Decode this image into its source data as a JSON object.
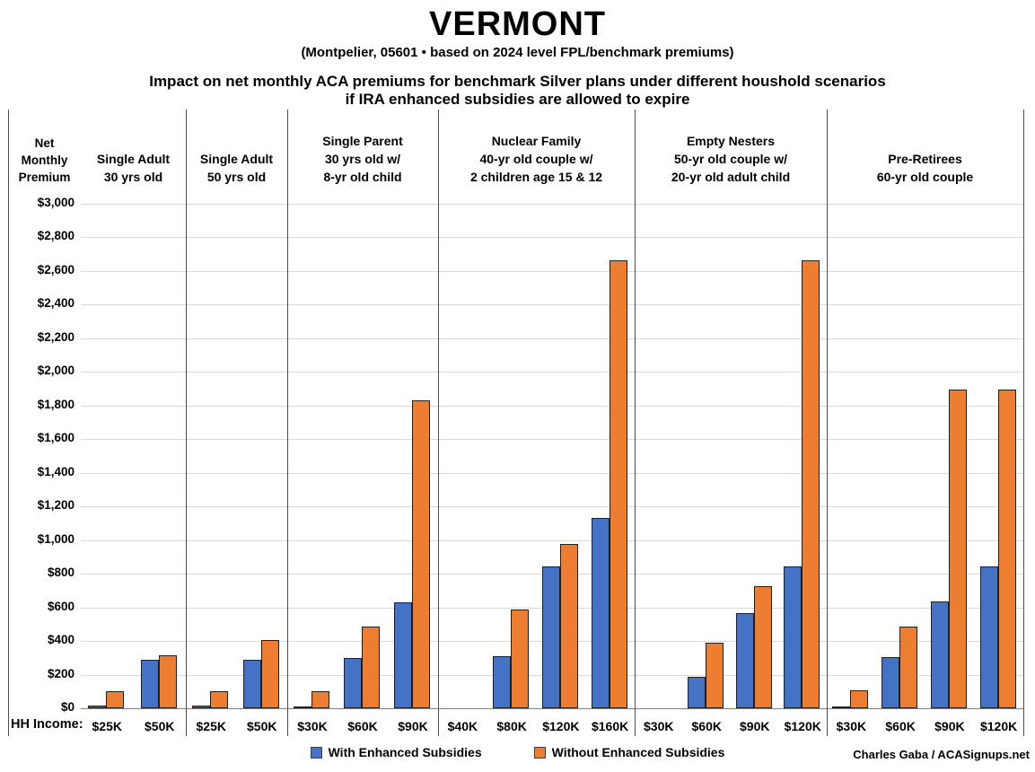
{
  "title": "VERMONT",
  "subtitle": "(Montpelier, 05601 • based on 2024 level FPL/benchmark premiums)",
  "heading_line1": "Impact on net monthly ACA premiums for benchmark Silver plans under different houshold scenarios",
  "heading_line2": "if IRA enhanced subsidies are allowed to expire",
  "y_axis_title_lines": [
    "Net",
    "Monthly",
    "Premium"
  ],
  "hh_income_label": "HH Income:",
  "credit": "Charles Gaba / ACASignups.net",
  "legend": {
    "items": [
      {
        "label": "With Enhanced Subsidies",
        "color": "#4472C4"
      },
      {
        "label": "Without Enhanced Subsidies",
        "color": "#ED7D31"
      }
    ]
  },
  "chart_data": {
    "type": "bar",
    "title": "VERMONT — Impact on net monthly ACA premiums for benchmark Silver plans under different houshold scenarios if IRA enhanced subsidies are allowed to expire",
    "ylabel": "Net Monthly Premium",
    "xlabel": "HH Income",
    "ylim": [
      0,
      3000
    ],
    "ytick_step": 200,
    "grid": true,
    "legend_position": "bottom",
    "y_tick_labels": [
      "$3,000",
      "$2,800",
      "$2,600",
      "$2,400",
      "$2,200",
      "$2,000",
      "$1,800",
      "$1,600",
      "$1,400",
      "$1,200",
      "$1,000",
      "$800",
      "$600",
      "$400",
      "$200",
      "$0"
    ],
    "series_names": [
      "With Enhanced Subsidies",
      "Without Enhanced Subsidies"
    ],
    "colors": {
      "with_enhanced": "#4472C4",
      "without_enhanced": "#ED7D31"
    },
    "panels": [
      {
        "header": [
          "Single Adult",
          "30 yrs old"
        ],
        "categories": [
          "$25K",
          "$50K"
        ],
        "with_enhanced": [
          15,
          290
        ],
        "without_enhanced": [
          100,
          315
        ]
      },
      {
        "header": [
          "Single Adult",
          "50 yrs old"
        ],
        "categories": [
          "$25K",
          "$50K"
        ],
        "with_enhanced": [
          15,
          290
        ],
        "without_enhanced": [
          100,
          405
        ]
      },
      {
        "header": [
          "Single Parent",
          "30 yrs old w/",
          "8-yr old child"
        ],
        "categories": [
          "$30K",
          "$60K",
          "$90K"
        ],
        "with_enhanced": [
          10,
          300,
          630
        ],
        "without_enhanced": [
          100,
          485,
          1830
        ]
      },
      {
        "header": [
          "Nuclear Family",
          "40-yr old couple w/",
          "2 children age 15 & 12"
        ],
        "categories": [
          "$40K",
          "$80K",
          "$120K",
          "$160K"
        ],
        "with_enhanced": [
          0,
          310,
          845,
          1130
        ],
        "without_enhanced": [
          0,
          585,
          975,
          2665
        ]
      },
      {
        "header": [
          "Empty Nesters",
          "50-yr old couple w/",
          "20-yr old adult child"
        ],
        "categories": [
          "$30K",
          "$60K",
          "$90K",
          "$120K"
        ],
        "with_enhanced": [
          0,
          185,
          565,
          845
        ],
        "without_enhanced": [
          0,
          390,
          725,
          2665
        ]
      },
      {
        "header": [
          "Pre-Retirees",
          "60-yr old couple"
        ],
        "categories": [
          "$30K",
          "$60K",
          "$90K",
          "$120K"
        ],
        "with_enhanced": [
          10,
          305,
          635,
          845
        ],
        "without_enhanced": [
          105,
          485,
          1895,
          1895
        ]
      }
    ]
  }
}
